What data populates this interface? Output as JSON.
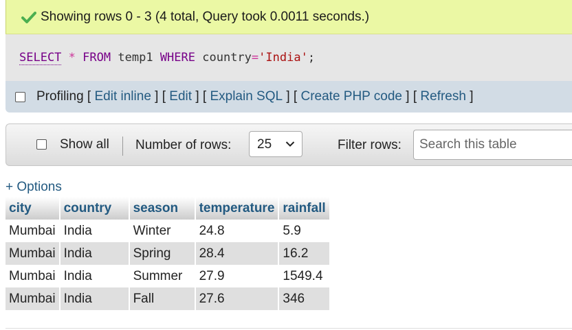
{
  "success": {
    "icon": "check-icon",
    "message": "Showing rows 0 - 3 (4 total, Query took 0.0011 seconds.)"
  },
  "sql": {
    "select": "SELECT",
    "star": "*",
    "from": "FROM",
    "table": "temp1",
    "where": "WHERE",
    "column": "country",
    "equals": "=",
    "value": "'India'",
    "semicolon": ";"
  },
  "profiling": {
    "label": "Profiling",
    "links": [
      "Edit inline",
      "Edit",
      "Explain SQL",
      "Create PHP code",
      "Refresh"
    ]
  },
  "nav": {
    "show_all": "Show all",
    "number_of_rows_label": "Number of rows:",
    "number_of_rows_value": "25",
    "filter_label": "Filter rows:",
    "filter_placeholder": "Search this table"
  },
  "options_link": "+ Options",
  "table": {
    "columns": [
      "city",
      "country",
      "season",
      "temperature",
      "rainfall"
    ],
    "rows": [
      [
        "Mumbai",
        "India",
        "Winter",
        "24.8",
        "5.9"
      ],
      [
        "Mumbai",
        "India",
        "Spring",
        "28.4",
        "16.2"
      ],
      [
        "Mumbai",
        "India",
        "Summer",
        "27.9",
        "1549.4"
      ],
      [
        "Mumbai",
        "India",
        "Fall",
        "27.6",
        "346"
      ]
    ]
  },
  "colors": {
    "success_bg": "#ebf8a4",
    "link": "#235a81",
    "sql_keyword": "#770088",
    "sql_string": "#aa1111"
  }
}
